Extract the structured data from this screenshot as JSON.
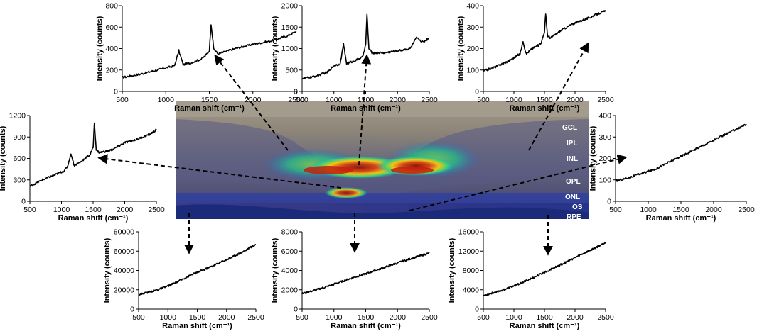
{
  "figure": {
    "image_layers": [
      "GCL",
      "IPL",
      "INL",
      "OPL",
      "ONL",
      "OS",
      "RPE"
    ]
  },
  "chart_data": [
    {
      "id": "top-left",
      "type": "line",
      "xlabel": "Raman shift (cm⁻¹)",
      "ylabel": "Intensity (counts)",
      "xlim": [
        500,
        2500
      ],
      "ylim": [
        0,
        800
      ],
      "xticks": [
        500,
        1000,
        1500,
        2000,
        2500
      ],
      "yticks": [
        0,
        200,
        400,
        600,
        800
      ],
      "x": [
        500,
        700,
        900,
        1000,
        1100,
        1150,
        1200,
        1300,
        1400,
        1450,
        1500,
        1520,
        1550,
        1600,
        1800,
        2000,
        2200,
        2400,
        2500
      ],
      "y": [
        130,
        160,
        200,
        220,
        240,
        380,
        250,
        270,
        300,
        330,
        380,
        630,
        400,
        350,
        400,
        440,
        470,
        520,
        560
      ]
    },
    {
      "id": "top-center",
      "type": "line",
      "xlabel": "Raman shift (cm⁻¹)",
      "ylabel": "Intensity (counts)",
      "xlim": [
        500,
        2500
      ],
      "ylim": [
        0,
        2000
      ],
      "xticks": [
        500,
        1000,
        1500,
        2000,
        2500
      ],
      "yticks": [
        0,
        500,
        1000,
        1500,
        2000
      ],
      "x": [
        500,
        700,
        900,
        1000,
        1100,
        1150,
        1200,
        1300,
        1450,
        1500,
        1520,
        1550,
        1600,
        1800,
        2000,
        2200,
        2300,
        2400,
        2500
      ],
      "y": [
        300,
        350,
        450,
        600,
        650,
        1100,
        650,
        700,
        800,
        1100,
        1800,
        1000,
        900,
        900,
        950,
        1000,
        1250,
        1150,
        1250
      ]
    },
    {
      "id": "top-right",
      "type": "line",
      "xlabel": "Raman shift (cm⁻¹)",
      "ylabel": "Intensity (counts)",
      "xlim": [
        500,
        2500
      ],
      "ylim": [
        0,
        400
      ],
      "xticks": [
        500,
        1000,
        1500,
        2000,
        2500
      ],
      "yticks": [
        0,
        100,
        200,
        300,
        400
      ],
      "x": [
        500,
        700,
        900,
        1100,
        1150,
        1200,
        1300,
        1400,
        1450,
        1500,
        1520,
        1550,
        1600,
        1800,
        2000,
        2200,
        2400,
        2500
      ],
      "y": [
        95,
        115,
        140,
        175,
        235,
        175,
        200,
        215,
        230,
        280,
        360,
        260,
        250,
        290,
        320,
        340,
        365,
        375
      ]
    },
    {
      "id": "middle-left",
      "type": "line",
      "xlabel": "Raman shift (cm⁻¹)",
      "ylabel": "Intensity (counts)",
      "xlim": [
        500,
        2500
      ],
      "ylim": [
        0,
        1200
      ],
      "xticks": [
        500,
        1000,
        1500,
        2000,
        2500
      ],
      "yticks": [
        0,
        300,
        600,
        900,
        1200
      ],
      "x": [
        500,
        700,
        900,
        1050,
        1100,
        1150,
        1200,
        1300,
        1400,
        1450,
        1500,
        1520,
        1550,
        1600,
        1800,
        2000,
        2200,
        2400,
        2500
      ],
      "y": [
        210,
        300,
        370,
        430,
        500,
        670,
        500,
        550,
        620,
        650,
        750,
        1100,
        720,
        680,
        720,
        820,
        870,
        940,
        1000
      ]
    },
    {
      "id": "middle-right",
      "type": "line",
      "xlabel": "Raman shift (cm⁻¹)",
      "ylabel": "Intensity (counts)",
      "xlim": [
        500,
        2500
      ],
      "ylim": [
        0,
        400
      ],
      "xticks": [
        500,
        1000,
        1500,
        2000,
        2500
      ],
      "yticks": [
        0,
        100,
        200,
        300,
        400
      ],
      "x": [
        500,
        700,
        900,
        1100,
        1300,
        1500,
        1700,
        1900,
        2100,
        2300,
        2500
      ],
      "y": [
        95,
        110,
        130,
        150,
        180,
        210,
        240,
        270,
        300,
        330,
        360
      ]
    },
    {
      "id": "bottom-left",
      "type": "line",
      "xlabel": "Raman shift (cm⁻¹)",
      "ylabel": "Intensity (counts)",
      "xlim": [
        500,
        2500
      ],
      "ylim": [
        0,
        80000
      ],
      "xticks": [
        500,
        1000,
        1500,
        2000,
        2500
      ],
      "yticks": [
        0,
        20000,
        40000,
        60000,
        80000
      ],
      "x": [
        500,
        700,
        900,
        1100,
        1300,
        1400,
        1500,
        1700,
        1900,
        2100,
        2300,
        2500
      ],
      "y": [
        15000,
        18000,
        21500,
        26500,
        32500,
        35500,
        38000,
        43000,
        48500,
        54000,
        60000,
        67000
      ]
    },
    {
      "id": "bottom-center",
      "type": "line",
      "xlabel": "Raman shift (cm⁻¹)",
      "ylabel": "Intensity (counts)",
      "xlim": [
        500,
        2500
      ],
      "ylim": [
        0,
        8000
      ],
      "xticks": [
        500,
        1000,
        1500,
        2000,
        2500
      ],
      "yticks": [
        0,
        2000,
        4000,
        6000,
        8000
      ],
      "x": [
        500,
        700,
        900,
        1100,
        1300,
        1500,
        1700,
        1900,
        2100,
        2300,
        2500
      ],
      "y": [
        1600,
        1950,
        2350,
        2800,
        3250,
        3650,
        4100,
        4550,
        5000,
        5400,
        5800
      ]
    },
    {
      "id": "bottom-right",
      "type": "line",
      "xlabel": "Raman shift (cm⁻¹)",
      "ylabel": "Intensity (counts)",
      "xlim": [
        500,
        2500
      ],
      "ylim": [
        0,
        16000
      ],
      "xticks": [
        500,
        1000,
        1500,
        2000,
        2500
      ],
      "yticks": [
        0,
        4000,
        8000,
        12000,
        16000
      ],
      "x": [
        500,
        700,
        900,
        1100,
        1300,
        1500,
        1700,
        1900,
        2100,
        2300,
        2500
      ],
      "y": [
        2800,
        3500,
        4300,
        5300,
        6400,
        7600,
        8800,
        10000,
        11300,
        12500,
        13800
      ]
    }
  ]
}
